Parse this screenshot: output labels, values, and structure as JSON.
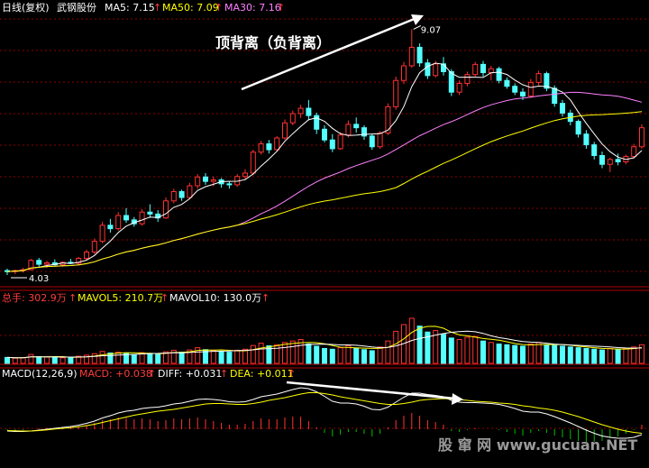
{
  "header": {
    "period": "日线(复权)",
    "stock": "武钢股份",
    "ma5": "MA5: 7.15",
    "ma50": "MA50: 7.09",
    "ma30": "MA30: 7.16",
    "arrow": "↑"
  },
  "vol_header": {
    "total": "总手: 302.9万",
    "mavol5": "MAVOL5: 210.7万",
    "mavol10": "MAVOL10: 130.0万",
    "arrow": "↑"
  },
  "macd_header": {
    "params": "MACD(12,26,9)",
    "macd": "MACD: +0.038",
    "diff": "DIFF: +0.031",
    "dea": "DEA: +0.011",
    "arrow": "↑"
  },
  "annotation": "顶背离（负背离）",
  "watermark": "股 窜 网  www.gucuan.NET",
  "colors": {
    "up": "#ff3232",
    "down": "#54ffff",
    "ma5": "#ffffff",
    "ma30": "#ff80ff",
    "ma50": "#ffff00",
    "grid": "#8b0000",
    "text_red": "#ff3c3c",
    "text_yellow": "#ffff00",
    "text_magenta": "#ff80ff",
    "macd_neg": "#00c000"
  },
  "chart_data": [
    {
      "type": "candlestick",
      "low_label": "4.03",
      "high_label": "9.07",
      "ylim": [
        3.9,
        9.3
      ],
      "candles": [
        [
          4.12,
          4.16,
          4.03,
          4.1
        ],
        [
          4.1,
          4.14,
          4.05,
          4.12
        ],
        [
          4.12,
          4.18,
          4.08,
          4.14
        ],
        [
          4.14,
          4.36,
          4.12,
          4.33
        ],
        [
          4.33,
          4.38,
          4.2,
          4.25
        ],
        [
          4.25,
          4.32,
          4.18,
          4.28
        ],
        [
          4.28,
          4.35,
          4.22,
          4.24
        ],
        [
          4.24,
          4.31,
          4.2,
          4.29
        ],
        [
          4.29,
          4.36,
          4.25,
          4.27
        ],
        [
          4.27,
          4.4,
          4.24,
          4.37
        ],
        [
          4.37,
          4.55,
          4.33,
          4.5
        ],
        [
          4.5,
          4.78,
          4.46,
          4.72
        ],
        [
          4.72,
          5.12,
          4.68,
          5.05
        ],
        [
          5.05,
          5.18,
          4.9,
          4.98
        ],
        [
          4.98,
          5.32,
          4.94,
          5.25
        ],
        [
          5.25,
          5.4,
          5.1,
          5.16
        ],
        [
          5.16,
          5.22,
          5.02,
          5.08
        ],
        [
          5.08,
          5.38,
          5.04,
          5.32
        ],
        [
          5.32,
          5.48,
          5.2,
          5.28
        ],
        [
          5.28,
          5.36,
          5.12,
          5.2
        ],
        [
          5.2,
          5.62,
          5.18,
          5.55
        ],
        [
          5.55,
          5.8,
          5.5,
          5.74
        ],
        [
          5.74,
          5.78,
          5.55,
          5.62
        ],
        [
          5.62,
          5.92,
          5.58,
          5.86
        ],
        [
          5.86,
          6.1,
          5.8,
          6.04
        ],
        [
          6.04,
          6.12,
          5.88,
          5.95
        ],
        [
          5.95,
          6.05,
          5.85,
          5.98
        ],
        [
          5.98,
          6.02,
          5.82,
          5.9
        ],
        [
          5.9,
          5.96,
          5.8,
          5.88
        ],
        [
          5.88,
          6.1,
          5.84,
          6.05
        ],
        [
          6.05,
          6.2,
          5.98,
          6.12
        ],
        [
          6.12,
          6.6,
          6.08,
          6.55
        ],
        [
          6.55,
          6.78,
          6.5,
          6.72
        ],
        [
          6.72,
          6.8,
          6.52,
          6.6
        ],
        [
          6.6,
          6.88,
          6.56,
          6.84
        ],
        [
          6.84,
          7.22,
          6.8,
          7.15
        ],
        [
          7.15,
          7.4,
          7.1,
          7.34
        ],
        [
          7.34,
          7.52,
          7.25,
          7.45
        ],
        [
          7.45,
          7.62,
          7.2,
          7.3
        ],
        [
          7.3,
          7.36,
          6.92,
          7.02
        ],
        [
          7.02,
          7.1,
          6.75,
          6.8
        ],
        [
          6.8,
          6.92,
          6.55,
          6.62
        ],
        [
          6.62,
          6.96,
          6.6,
          6.9
        ],
        [
          6.9,
          7.2,
          6.85,
          7.12
        ],
        [
          7.12,
          7.26,
          6.95,
          7.05
        ],
        [
          7.05,
          7.1,
          6.8,
          6.88
        ],
        [
          6.88,
          6.92,
          6.6,
          6.66
        ],
        [
          6.66,
          6.98,
          6.62,
          6.94
        ],
        [
          6.94,
          7.55,
          6.9,
          7.48
        ],
        [
          7.48,
          8.1,
          7.42,
          8.02
        ],
        [
          8.02,
          8.4,
          7.95,
          8.32
        ],
        [
          8.32,
          9.07,
          8.28,
          8.7
        ],
        [
          8.7,
          8.78,
          8.3,
          8.38
        ],
        [
          8.38,
          8.46,
          8.05,
          8.12
        ],
        [
          8.12,
          8.42,
          8.08,
          8.36
        ],
        [
          8.36,
          8.5,
          8.12,
          8.2
        ],
        [
          8.2,
          8.25,
          7.7,
          7.78
        ],
        [
          7.78,
          8.02,
          7.72,
          7.96
        ],
        [
          7.96,
          8.2,
          7.9,
          8.14
        ],
        [
          8.14,
          8.4,
          8.1,
          8.35
        ],
        [
          8.35,
          8.42,
          8.1,
          8.18
        ],
        [
          8.18,
          8.32,
          8.02,
          8.26
        ],
        [
          8.26,
          8.3,
          7.96,
          8.02
        ],
        [
          8.02,
          8.08,
          7.85,
          7.9
        ],
        [
          7.9,
          7.96,
          7.72,
          7.78
        ],
        [
          7.78,
          7.86,
          7.62,
          7.7
        ],
        [
          7.7,
          8.05,
          7.66,
          7.98
        ],
        [
          7.98,
          8.22,
          7.92,
          8.16
        ],
        [
          8.16,
          8.2,
          7.8,
          7.86
        ],
        [
          7.86,
          7.92,
          7.48,
          7.55
        ],
        [
          7.55,
          7.62,
          7.28,
          7.35
        ],
        [
          7.35,
          7.42,
          7.1,
          7.18
        ],
        [
          7.18,
          7.22,
          6.85,
          6.92
        ],
        [
          6.92,
          7.0,
          6.62,
          6.7
        ],
        [
          6.7,
          6.76,
          6.4,
          6.48
        ],
        [
          6.48,
          6.56,
          6.22,
          6.3
        ],
        [
          6.3,
          6.44,
          6.14,
          6.4
        ],
        [
          6.4,
          6.52,
          6.28,
          6.35
        ],
        [
          6.35,
          6.5,
          6.3,
          6.46
        ],
        [
          6.46,
          6.72,
          6.42,
          6.66
        ],
        [
          6.66,
          7.12,
          6.62,
          7.05
        ]
      ]
    },
    {
      "type": "bar",
      "title": "volume",
      "values": [
        40,
        35,
        38,
        60,
        45,
        42,
        40,
        38,
        40,
        48,
        55,
        65,
        80,
        70,
        75,
        68,
        60,
        72,
        66,
        60,
        78,
        88,
        75,
        90,
        105,
        92,
        85,
        80,
        75,
        88,
        95,
        120,
        135,
        118,
        125,
        140,
        150,
        160,
        130,
        115,
        100,
        95,
        105,
        118,
        100,
        92,
        85,
        110,
        150,
        215,
        260,
        302,
        250,
        210,
        220,
        195,
        170,
        160,
        175,
        180,
        150,
        140,
        130,
        125,
        120,
        115,
        130,
        140,
        125,
        120,
        115,
        110,
        105,
        100,
        95,
        90,
        100,
        95,
        100,
        110,
        125
      ]
    },
    {
      "type": "bar",
      "title": "macd",
      "values": [
        -0.02,
        -0.03,
        -0.02,
        0.0,
        0.02,
        0.03,
        0.03,
        0.04,
        0.05,
        0.07,
        0.1,
        0.14,
        0.2,
        0.22,
        0.26,
        0.25,
        0.22,
        0.24,
        0.22,
        0.18,
        0.2,
        0.24,
        0.22,
        0.24,
        0.26,
        0.22,
        0.18,
        0.14,
        0.1,
        0.1,
        0.12,
        0.18,
        0.24,
        0.22,
        0.22,
        0.26,
        0.28,
        0.28,
        0.18,
        0.04,
        -0.08,
        -0.16,
        -0.12,
        -0.06,
        -0.06,
        -0.1,
        -0.16,
        -0.1,
        0.04,
        0.2,
        0.3,
        0.36,
        0.3,
        0.2,
        0.16,
        0.1,
        -0.04,
        -0.06,
        -0.02,
        0.02,
        0.0,
        0.0,
        -0.02,
        -0.06,
        -0.1,
        -0.14,
        -0.08,
        -0.04,
        -0.08,
        -0.14,
        -0.18,
        -0.22,
        -0.26,
        -0.28,
        -0.28,
        -0.26,
        -0.2,
        -0.16,
        -0.1,
        -0.02,
        0.1
      ],
      "diff": [
        -0.04,
        -0.05,
        -0.05,
        -0.04,
        -0.02,
        0.0,
        0.02,
        0.04,
        0.06,
        0.09,
        0.13,
        0.18,
        0.25,
        0.3,
        0.36,
        0.4,
        0.42,
        0.46,
        0.48,
        0.49,
        0.52,
        0.56,
        0.58,
        0.62,
        0.66,
        0.67,
        0.66,
        0.64,
        0.61,
        0.6,
        0.61,
        0.66,
        0.72,
        0.75,
        0.78,
        0.83,
        0.88,
        0.92,
        0.9,
        0.83,
        0.73,
        0.62,
        0.58,
        0.58,
        0.56,
        0.51,
        0.44,
        0.43,
        0.49,
        0.6,
        0.71,
        0.8,
        0.8,
        0.77,
        0.75,
        0.72,
        0.64,
        0.6,
        0.59,
        0.59,
        0.58,
        0.57,
        0.55,
        0.51,
        0.46,
        0.4,
        0.38,
        0.38,
        0.34,
        0.28,
        0.21,
        0.14,
        0.06,
        -0.02,
        -0.09,
        -0.15,
        -0.18,
        -0.2,
        -0.2,
        -0.18,
        -0.12
      ],
      "dea": [
        -0.03,
        -0.035,
        -0.04,
        -0.04,
        -0.03,
        -0.015,
        0.005,
        0.02,
        0.035,
        0.055,
        0.08,
        0.11,
        0.15,
        0.19,
        0.23,
        0.27,
        0.31,
        0.34,
        0.37,
        0.4,
        0.42,
        0.44,
        0.47,
        0.5,
        0.53,
        0.56,
        0.57,
        0.57,
        0.56,
        0.55,
        0.55,
        0.57,
        0.6,
        0.64,
        0.67,
        0.7,
        0.74,
        0.78,
        0.81,
        0.81,
        0.79,
        0.76,
        0.72,
        0.69,
        0.66,
        0.63,
        0.6,
        0.57,
        0.55,
        0.55,
        0.57,
        0.6,
        0.64,
        0.66,
        0.67,
        0.68,
        0.67,
        0.66,
        0.64,
        0.62,
        0.61,
        0.6,
        0.58,
        0.57,
        0.55,
        0.52,
        0.5,
        0.47,
        0.45,
        0.42,
        0.38,
        0.33,
        0.28,
        0.22,
        0.16,
        0.1,
        0.05,
        0.0,
        -0.04,
        -0.07,
        -0.09
      ]
    }
  ]
}
